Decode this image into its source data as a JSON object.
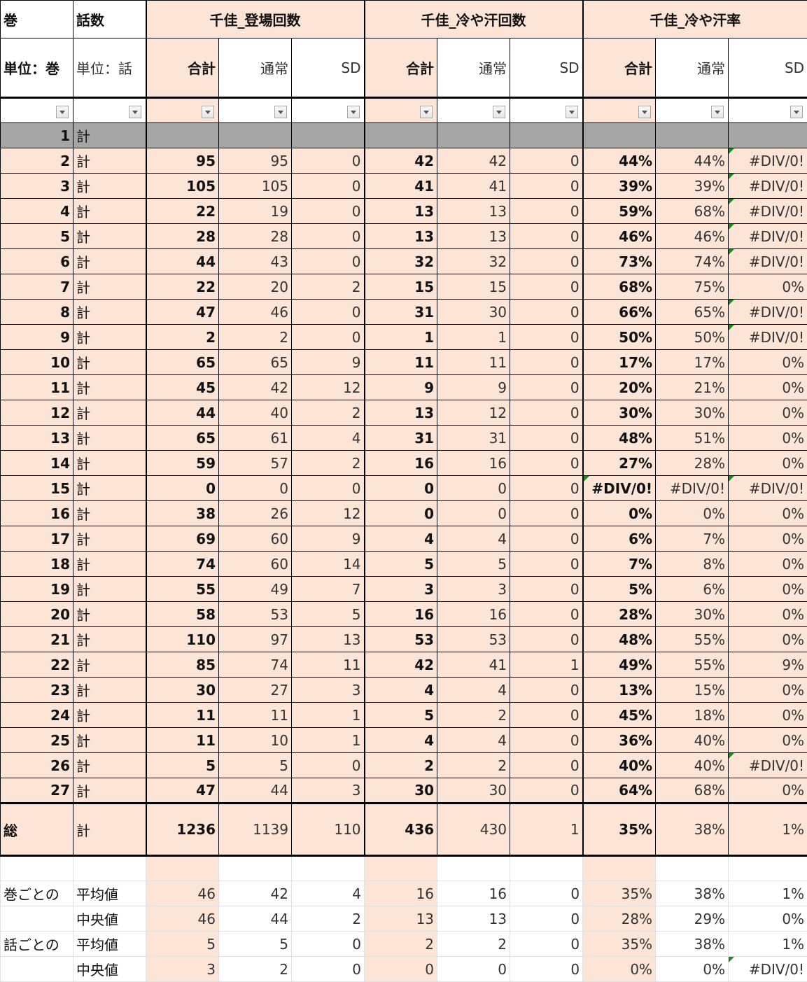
{
  "header": {
    "col_vol": "巻",
    "col_ep": "話数",
    "groups": [
      "千佳_登場回数",
      "千佳_冷や汗回数",
      "千佳_冷や汗率"
    ],
    "unit_vol": "単位：巻",
    "unit_ep": "単位：話",
    "sub": [
      "合計",
      "通常",
      "SD"
    ]
  },
  "colors": {
    "peach": "#fce4d6",
    "gray": "#a6a6a6",
    "error_flag": "#1e8a1e"
  },
  "rows": [
    {
      "vol": "1",
      "ep": "計",
      "v": [
        "",
        "",
        "",
        "",
        "",
        "",
        "",
        "",
        ""
      ],
      "blank": true,
      "warn": []
    },
    {
      "vol": "2",
      "ep": "計",
      "v": [
        "95",
        "95",
        "0",
        "42",
        "42",
        "0",
        "44%",
        "44%",
        "#DIV/0!"
      ],
      "warn": [
        8
      ]
    },
    {
      "vol": "3",
      "ep": "計",
      "v": [
        "105",
        "105",
        "0",
        "41",
        "41",
        "0",
        "39%",
        "39%",
        "#DIV/0!"
      ],
      "warn": [
        8
      ]
    },
    {
      "vol": "4",
      "ep": "計",
      "v": [
        "22",
        "19",
        "0",
        "13",
        "13",
        "0",
        "59%",
        "68%",
        "#DIV/0!"
      ],
      "warn": [
        8
      ]
    },
    {
      "vol": "5",
      "ep": "計",
      "v": [
        "28",
        "28",
        "0",
        "13",
        "13",
        "0",
        "46%",
        "46%",
        "#DIV/0!"
      ],
      "warn": [
        8
      ]
    },
    {
      "vol": "6",
      "ep": "計",
      "v": [
        "44",
        "43",
        "0",
        "32",
        "32",
        "0",
        "73%",
        "74%",
        "#DIV/0!"
      ],
      "warn": [
        8
      ]
    },
    {
      "vol": "7",
      "ep": "計",
      "v": [
        "22",
        "20",
        "2",
        "15",
        "15",
        "0",
        "68%",
        "75%",
        "0%"
      ],
      "warn": []
    },
    {
      "vol": "8",
      "ep": "計",
      "v": [
        "47",
        "46",
        "0",
        "31",
        "30",
        "0",
        "66%",
        "65%",
        "#DIV/0!"
      ],
      "warn": [
        8
      ]
    },
    {
      "vol": "9",
      "ep": "計",
      "v": [
        "2",
        "2",
        "0",
        "1",
        "1",
        "0",
        "50%",
        "50%",
        "#DIV/0!"
      ],
      "warn": [
        8
      ]
    },
    {
      "vol": "10",
      "ep": "計",
      "v": [
        "65",
        "65",
        "9",
        "11",
        "11",
        "0",
        "17%",
        "17%",
        "0%"
      ],
      "warn": []
    },
    {
      "vol": "11",
      "ep": "計",
      "v": [
        "45",
        "42",
        "12",
        "9",
        "9",
        "0",
        "20%",
        "21%",
        "0%"
      ],
      "warn": []
    },
    {
      "vol": "12",
      "ep": "計",
      "v": [
        "44",
        "40",
        "2",
        "13",
        "12",
        "0",
        "30%",
        "30%",
        "0%"
      ],
      "warn": []
    },
    {
      "vol": "13",
      "ep": "計",
      "v": [
        "65",
        "61",
        "4",
        "31",
        "31",
        "0",
        "48%",
        "51%",
        "0%"
      ],
      "warn": []
    },
    {
      "vol": "14",
      "ep": "計",
      "v": [
        "59",
        "57",
        "2",
        "16",
        "16",
        "0",
        "27%",
        "28%",
        "0%"
      ],
      "warn": []
    },
    {
      "vol": "15",
      "ep": "計",
      "v": [
        "0",
        "0",
        "0",
        "0",
        "0",
        "0",
        "#DIV/0!",
        "#DIV/0!",
        "#DIV/0!"
      ],
      "warn": [
        6,
        8
      ]
    },
    {
      "vol": "16",
      "ep": "計",
      "v": [
        "38",
        "26",
        "12",
        "0",
        "0",
        "0",
        "0%",
        "0%",
        "0%"
      ],
      "warn": []
    },
    {
      "vol": "17",
      "ep": "計",
      "v": [
        "69",
        "60",
        "9",
        "4",
        "4",
        "0",
        "6%",
        "7%",
        "0%"
      ],
      "warn": []
    },
    {
      "vol": "18",
      "ep": "計",
      "v": [
        "74",
        "60",
        "14",
        "5",
        "5",
        "0",
        "7%",
        "8%",
        "0%"
      ],
      "warn": []
    },
    {
      "vol": "19",
      "ep": "計",
      "v": [
        "55",
        "49",
        "7",
        "3",
        "3",
        "0",
        "5%",
        "6%",
        "0%"
      ],
      "warn": []
    },
    {
      "vol": "20",
      "ep": "計",
      "v": [
        "58",
        "53",
        "5",
        "16",
        "16",
        "0",
        "28%",
        "30%",
        "0%"
      ],
      "warn": []
    },
    {
      "vol": "21",
      "ep": "計",
      "v": [
        "110",
        "97",
        "13",
        "53",
        "53",
        "0",
        "48%",
        "55%",
        "0%"
      ],
      "warn": []
    },
    {
      "vol": "22",
      "ep": "計",
      "v": [
        "85",
        "74",
        "11",
        "42",
        "41",
        "1",
        "49%",
        "55%",
        "9%"
      ],
      "warn": []
    },
    {
      "vol": "23",
      "ep": "計",
      "v": [
        "30",
        "27",
        "3",
        "4",
        "4",
        "0",
        "13%",
        "15%",
        "0%"
      ],
      "warn": []
    },
    {
      "vol": "24",
      "ep": "計",
      "v": [
        "11",
        "11",
        "1",
        "5",
        "2",
        "0",
        "45%",
        "18%",
        "0%"
      ],
      "warn": []
    },
    {
      "vol": "25",
      "ep": "計",
      "v": [
        "11",
        "10",
        "1",
        "4",
        "4",
        "0",
        "36%",
        "40%",
        "0%"
      ],
      "warn": []
    },
    {
      "vol": "26",
      "ep": "計",
      "v": [
        "5",
        "5",
        "0",
        "2",
        "2",
        "0",
        "40%",
        "40%",
        "#DIV/0!"
      ],
      "warn": [
        8
      ]
    },
    {
      "vol": "27",
      "ep": "計",
      "v": [
        "47",
        "44",
        "3",
        "30",
        "30",
        "0",
        "64%",
        "68%",
        "0%"
      ],
      "warn": []
    }
  ],
  "total": {
    "vol": "総",
    "ep": "計",
    "v": [
      "1236",
      "1139",
      "110",
      "436",
      "430",
      "1",
      "35%",
      "38%",
      "1%"
    ]
  },
  "stats": [
    {
      "group": "巻ごとの",
      "label": "平均値",
      "v": [
        "46",
        "42",
        "4",
        "16",
        "16",
        "0",
        "35%",
        "38%",
        "1%"
      ],
      "warn": []
    },
    {
      "group": "",
      "label": "中央値",
      "v": [
        "46",
        "44",
        "2",
        "13",
        "13",
        "0",
        "28%",
        "29%",
        "0%"
      ],
      "warn": []
    },
    {
      "group": "話ごとの",
      "label": "平均値",
      "v": [
        "5",
        "5",
        "0",
        "2",
        "2",
        "0",
        "35%",
        "38%",
        "1%"
      ],
      "warn": []
    },
    {
      "group": "",
      "label": "中央値",
      "v": [
        "3",
        "2",
        "0",
        "0",
        "0",
        "0",
        "0%",
        "0%",
        "#DIV/0!"
      ],
      "warn": [
        8
      ]
    }
  ]
}
